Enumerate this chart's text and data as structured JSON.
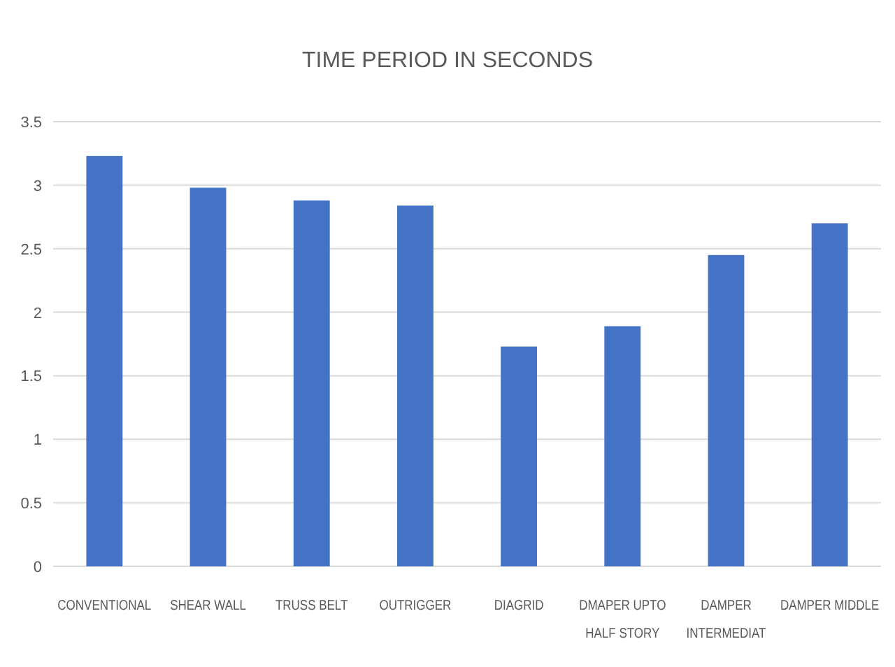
{
  "chart_data": {
    "type": "bar",
    "title": "TIME PERIOD IN SECONDS",
    "categories": [
      "CONVENTIONAL",
      "SHEAR WALL",
      "TRUSS BELT",
      "OUTRIGGER",
      "DIAGRID",
      "DMAPER UPTO HALF STORY",
      "DAMPER INTERMEDIAT",
      "DAMPER MIDDLE"
    ],
    "values": [
      3.23,
      2.98,
      2.88,
      2.84,
      1.73,
      1.89,
      2.45,
      2.7
    ],
    "color": "#4472c4",
    "ylim": [
      0,
      3.5
    ],
    "yticks": [
      0,
      0.5,
      1,
      1.5,
      2,
      2.5,
      3,
      3.5
    ],
    "grid": "y"
  }
}
